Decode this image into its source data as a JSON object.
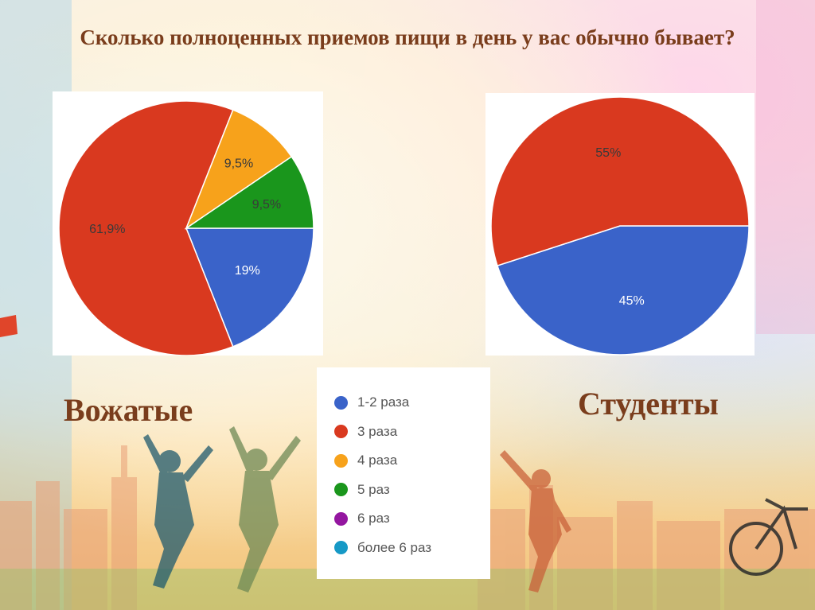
{
  "slide": {
    "title": "Сколько полноценных приемов пищи в день у вас обычно бывает?"
  },
  "colors": {
    "title_text": "#7a3d1c",
    "1-2 раза": "#3a63c9",
    "3 раза": "#d9391f",
    "4 раза": "#f7a21b",
    "5 раз": "#1a961c",
    "6 раз": "#9416a0",
    "более 6 раз": "#1699c6"
  },
  "legend": {
    "items": [
      {
        "label": "1-2 раза",
        "color": "#3a63c9"
      },
      {
        "label": "3 раза",
        "color": "#d9391f"
      },
      {
        "label": "4 раза",
        "color": "#f7a21b"
      },
      {
        "label": "5 раз",
        "color": "#1a961c"
      },
      {
        "label": "6 раз",
        "color": "#9416a0"
      },
      {
        "label": "более 6 раз",
        "color": "#1699c6"
      }
    ]
  },
  "chart_data": [
    {
      "type": "pie",
      "group_label": "Вожатые",
      "slices": [
        {
          "category": "1-2 раза",
          "value": 19,
          "label": "19%"
        },
        {
          "category": "3 раза",
          "value": 61.9,
          "label": "61,9%"
        },
        {
          "category": "4 раза",
          "value": 9.5,
          "label": "9,5%"
        },
        {
          "category": "5 раз",
          "value": 9.5,
          "label": "9,5%"
        }
      ]
    },
    {
      "type": "pie",
      "group_label": "Студенты",
      "slices": [
        {
          "category": "1-2 раза",
          "value": 45,
          "label": "45%"
        },
        {
          "category": "3 раза",
          "value": 55,
          "label": "55%"
        }
      ]
    }
  ]
}
